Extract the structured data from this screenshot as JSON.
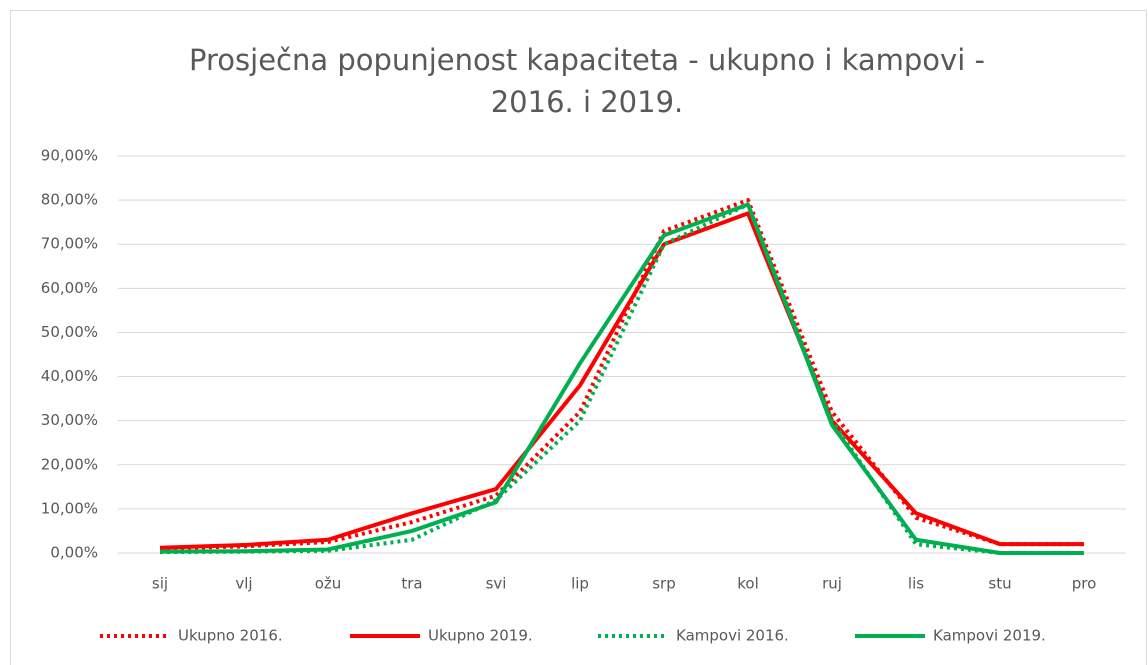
{
  "chart_data": {
    "type": "line",
    "title": [
      "Prosječna popunjenost kapaciteta - ukupno i kampovi -",
      "2016. i 2019."
    ],
    "categories": [
      "sij",
      "vlj",
      "ožu",
      "tra",
      "svi",
      "lip",
      "srp",
      "kol",
      "ruj",
      "lis",
      "stu",
      "pro"
    ],
    "series": [
      {
        "name": "Ukupno 2016.",
        "color": "#ff0000",
        "dashed": true,
        "values": [
          1,
          1.5,
          2.5,
          7,
          13,
          32,
          73,
          80,
          32,
          8,
          2,
          2
        ]
      },
      {
        "name": "Ukupno 2019.",
        "color": "#ff0000",
        "dashed": false,
        "values": [
          1.2,
          1.8,
          3,
          9,
          14.5,
          38,
          70,
          77,
          30,
          9,
          2,
          2
        ]
      },
      {
        "name": "Kampovi 2016.",
        "color": "#00b050",
        "dashed": true,
        "values": [
          0.2,
          0.3,
          0.5,
          3,
          12,
          30,
          70,
          79,
          30,
          2,
          0,
          0
        ]
      },
      {
        "name": "Kampovi 2019.",
        "color": "#00b050",
        "dashed": false,
        "values": [
          0.3,
          0.4,
          0.8,
          5,
          11.5,
          43,
          72,
          79,
          29,
          3,
          0,
          0
        ]
      }
    ],
    "ylim": [
      0,
      90
    ],
    "yticks": [
      {
        "value": 0,
        "label": "0,00%"
      },
      {
        "value": 10,
        "label": "10,00%"
      },
      {
        "value": 20,
        "label": "20,00%"
      },
      {
        "value": 30,
        "label": "30,00%"
      },
      {
        "value": 40,
        "label": "40,00%"
      },
      {
        "value": 50,
        "label": "50,00%"
      },
      {
        "value": 60,
        "label": "60,00%"
      },
      {
        "value": 70,
        "label": "70,00%"
      },
      {
        "value": 80,
        "label": "80,00%"
      },
      {
        "value": 90,
        "label": "90,00%"
      }
    ],
    "grid": true,
    "legend": "bottom"
  }
}
